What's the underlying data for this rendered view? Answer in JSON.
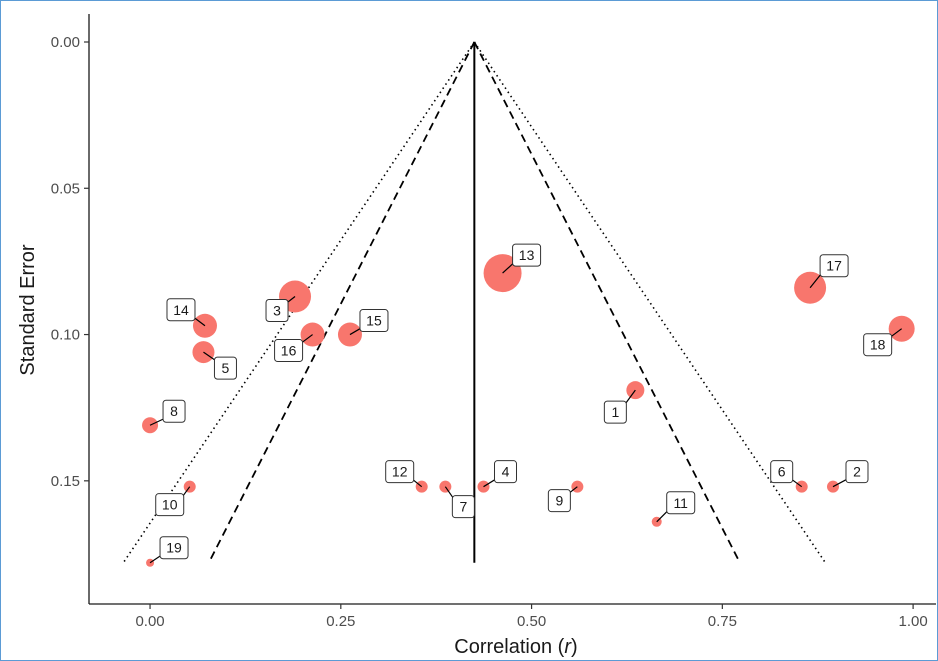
{
  "chart_data": {
    "type": "scatter",
    "title": "",
    "xlabel_prefix": "Correlation (",
    "xlabel_var": "r",
    "xlabel_suffix": ")",
    "ylabel": "Standard Error",
    "xlim": [
      -0.08,
      1.03
    ],
    "ylim": [
      0.0,
      0.188
    ],
    "y_reversed": true,
    "x_ticks": [
      "0.00",
      "0.25",
      "0.50",
      "0.75",
      "1.00"
    ],
    "x_tick_values": [
      0.0,
      0.25,
      0.5,
      0.75,
      1.0
    ],
    "y_ticks": [
      "0.00",
      "0.05",
      "0.10",
      "0.15"
    ],
    "y_tick_values": [
      0.0,
      0.05,
      0.1,
      0.15
    ],
    "grid": false,
    "point_color": "#f8766d",
    "pooled_estimate": 0.425,
    "funnel_apex_se": 0.0,
    "funnel_base_se": 0.178,
    "funnel_inner_x_at_base": [
      0.077,
      0.773
    ],
    "funnel_outer_x_at_base": [
      -0.035,
      0.885
    ],
    "points": [
      {
        "label": "1",
        "x": 0.636,
        "se": 0.119,
        "size": 9
      },
      {
        "label": "2",
        "x": 0.895,
        "se": 0.152,
        "size": 6
      },
      {
        "label": "3",
        "x": 0.19,
        "se": 0.087,
        "size": 16
      },
      {
        "label": "4",
        "x": 0.437,
        "se": 0.152,
        "size": 6
      },
      {
        "label": "5",
        "x": 0.07,
        "se": 0.106,
        "size": 11
      },
      {
        "label": "6",
        "x": 0.854,
        "se": 0.152,
        "size": 6
      },
      {
        "label": "7",
        "x": 0.387,
        "se": 0.152,
        "size": 6
      },
      {
        "label": "8",
        "x": 0.0,
        "se": 0.131,
        "size": 8
      },
      {
        "label": "9",
        "x": 0.56,
        "se": 0.152,
        "size": 6
      },
      {
        "label": "10",
        "x": 0.052,
        "se": 0.152,
        "size": 6
      },
      {
        "label": "11",
        "x": 0.664,
        "se": 0.164,
        "size": 5
      },
      {
        "label": "12",
        "x": 0.356,
        "se": 0.152,
        "size": 6
      },
      {
        "label": "13",
        "x": 0.462,
        "se": 0.079,
        "size": 19
      },
      {
        "label": "14",
        "x": 0.072,
        "se": 0.097,
        "size": 12
      },
      {
        "label": "15",
        "x": 0.262,
        "se": 0.1,
        "size": 12
      },
      {
        "label": "16",
        "x": 0.213,
        "se": 0.1,
        "size": 12
      },
      {
        "label": "17",
        "x": 0.865,
        "se": 0.084,
        "size": 16
      },
      {
        "label": "18",
        "x": 0.985,
        "se": 0.098,
        "size": 13
      },
      {
        "label": "19",
        "x": 0.0,
        "se": 0.178,
        "size": 4
      }
    ]
  }
}
